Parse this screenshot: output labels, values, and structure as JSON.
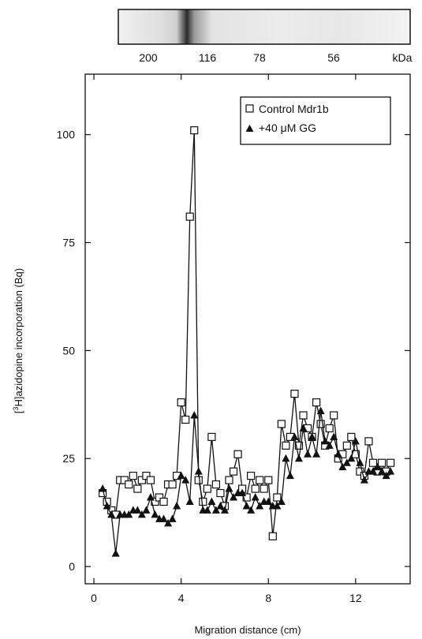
{
  "gel": {
    "marker_labels": [
      "200",
      "116",
      "78",
      "56"
    ],
    "unit_label": "kDa"
  },
  "chart_data": {
    "type": "line",
    "title": "",
    "xlabel": "Migration distance (cm)",
    "ylabel_pre": "[",
    "ylabel_sup": "3",
    "ylabel_post": "H]azidopine incorporation (Bq)",
    "xlim": [
      -0.4,
      14.5
    ],
    "ylim": [
      -4,
      114
    ],
    "x_ticks": [
      0,
      4,
      8,
      12
    ],
    "y_ticks": [
      0,
      25,
      50,
      75,
      100
    ],
    "grid": false,
    "legend_position": "top-right",
    "legend": {
      "control_label": "Control Mdr1b",
      "gg_label": "+40 μM GG"
    },
    "x": [
      0.4,
      0.6,
      0.8,
      1.0,
      1.2,
      1.4,
      1.6,
      1.8,
      2.0,
      2.2,
      2.4,
      2.6,
      2.8,
      3.0,
      3.2,
      3.4,
      3.6,
      3.8,
      4.0,
      4.2,
      4.4,
      4.6,
      4.8,
      5.0,
      5.2,
      5.4,
      5.6,
      5.8,
      6.0,
      6.2,
      6.4,
      6.6,
      6.8,
      7.0,
      7.2,
      7.4,
      7.6,
      7.8,
      8.0,
      8.2,
      8.4,
      8.6,
      8.8,
      9.0,
      9.2,
      9.4,
      9.6,
      9.8,
      10.0,
      10.2,
      10.4,
      10.6,
      10.8,
      11.0,
      11.2,
      11.4,
      11.6,
      11.8,
      12.0,
      12.2,
      12.4,
      12.6,
      12.8,
      13.0,
      13.2,
      13.4,
      13.6
    ],
    "series": [
      {
        "marker": "open-square",
        "values": [
          17,
          15,
          13,
          12,
          20,
          20,
          19,
          21,
          18,
          20,
          21,
          20,
          15,
          16,
          15,
          19,
          19,
          21,
          38,
          34,
          81,
          101,
          20,
          15,
          18,
          30,
          19,
          17,
          14,
          20,
          22,
          26,
          18,
          16,
          21,
          18,
          20,
          18,
          20,
          7,
          16,
          33,
          28,
          30,
          40,
          28,
          35,
          32,
          30,
          38,
          33,
          28,
          32,
          35,
          25,
          26,
          28,
          30,
          26,
          22,
          21,
          29,
          24,
          22,
          24,
          22,
          24
        ],
        "color": "#111111"
      },
      {
        "marker": "filled-triangle",
        "values": [
          18,
          14,
          12,
          3,
          12,
          12,
          12,
          13,
          13,
          12,
          13,
          16,
          12,
          11,
          11,
          10,
          11,
          14,
          21,
          20,
          15,
          35,
          22,
          13,
          13,
          15,
          13,
          14,
          13,
          18,
          16,
          17,
          17,
          14,
          13,
          16,
          14,
          15,
          15,
          14,
          14,
          15,
          25,
          21,
          30,
          25,
          32,
          26,
          30,
          26,
          36,
          29,
          28,
          30,
          26,
          23,
          24,
          25,
          29,
          24,
          20,
          22,
          22,
          23,
          22,
          21,
          22
        ],
        "color": "#111111"
      }
    ]
  }
}
